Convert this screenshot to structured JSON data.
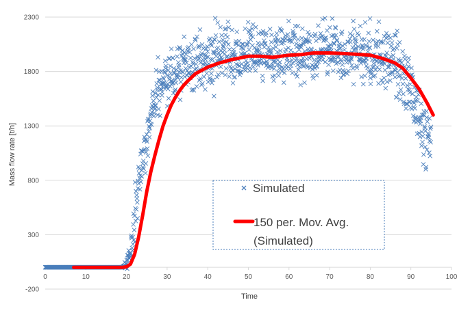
{
  "chart_data": {
    "type": "scatter",
    "xlabel": "Time",
    "ylabel": "Mass flow rate [t/h]",
    "xlim": [
      0,
      100
    ],
    "ylim": [
      -200,
      2300
    ],
    "x_ticks": [
      "0",
      "10",
      "20",
      "30",
      "40",
      "50",
      "60",
      "70",
      "80",
      "90",
      "100"
    ],
    "y_ticks": [
      "-200",
      "300",
      "800",
      "1300",
      "1800",
      "2300"
    ],
    "grid": "horizontal",
    "legend_position": "center",
    "series": [
      {
        "name": "Simulated",
        "type": "scatter",
        "marker": "x",
        "color": "#4a7ebb",
        "description_points": [
          [
            0,
            0
          ],
          [
            5,
            0
          ],
          [
            10,
            0
          ],
          [
            15,
            0
          ],
          [
            19,
            0
          ],
          [
            20,
            30
          ],
          [
            21,
            150
          ],
          [
            22,
            400
          ],
          [
            23,
            750
          ],
          [
            24,
            1000
          ],
          [
            25,
            1200
          ],
          [
            26,
            1400
          ],
          [
            27,
            1550
          ],
          [
            28,
            1650
          ],
          [
            30,
            1750
          ],
          [
            35,
            1850
          ],
          [
            40,
            1900
          ],
          [
            45,
            1950
          ],
          [
            50,
            1980
          ],
          [
            55,
            1970
          ],
          [
            60,
            1980
          ],
          [
            65,
            1990
          ],
          [
            70,
            2000
          ],
          [
            75,
            1990
          ],
          [
            80,
            1980
          ],
          [
            85,
            1900
          ],
          [
            88,
            1750
          ],
          [
            90,
            1600
          ],
          [
            92,
            1400
          ],
          [
            94,
            1200
          ],
          [
            95,
            1050
          ]
        ]
      },
      {
        "name": "150 per. Mov. Avg. (Simulated)",
        "type": "line",
        "color": "#ff0000",
        "x": [
          7,
          10,
          15,
          19,
          20,
          21,
          22,
          23,
          24,
          25,
          26,
          27,
          28,
          29,
          30,
          31,
          32,
          33,
          34,
          35,
          37,
          40,
          43,
          46,
          50,
          53,
          56,
          60,
          63,
          66,
          70,
          73,
          76,
          80,
          83,
          86,
          88,
          90,
          92,
          94,
          95.5
        ],
        "y": [
          0,
          0,
          0,
          0,
          5,
          30,
          120,
          280,
          480,
          700,
          880,
          1030,
          1170,
          1300,
          1400,
          1490,
          1560,
          1620,
          1670,
          1710,
          1780,
          1840,
          1880,
          1910,
          1940,
          1940,
          1930,
          1950,
          1955,
          1970,
          1970,
          1965,
          1960,
          1950,
          1920,
          1880,
          1830,
          1740,
          1640,
          1510,
          1400
        ]
      }
    ],
    "legend": [
      "Simulated",
      "150 per. Mov. Avg.",
      "(Simulated)"
    ]
  }
}
